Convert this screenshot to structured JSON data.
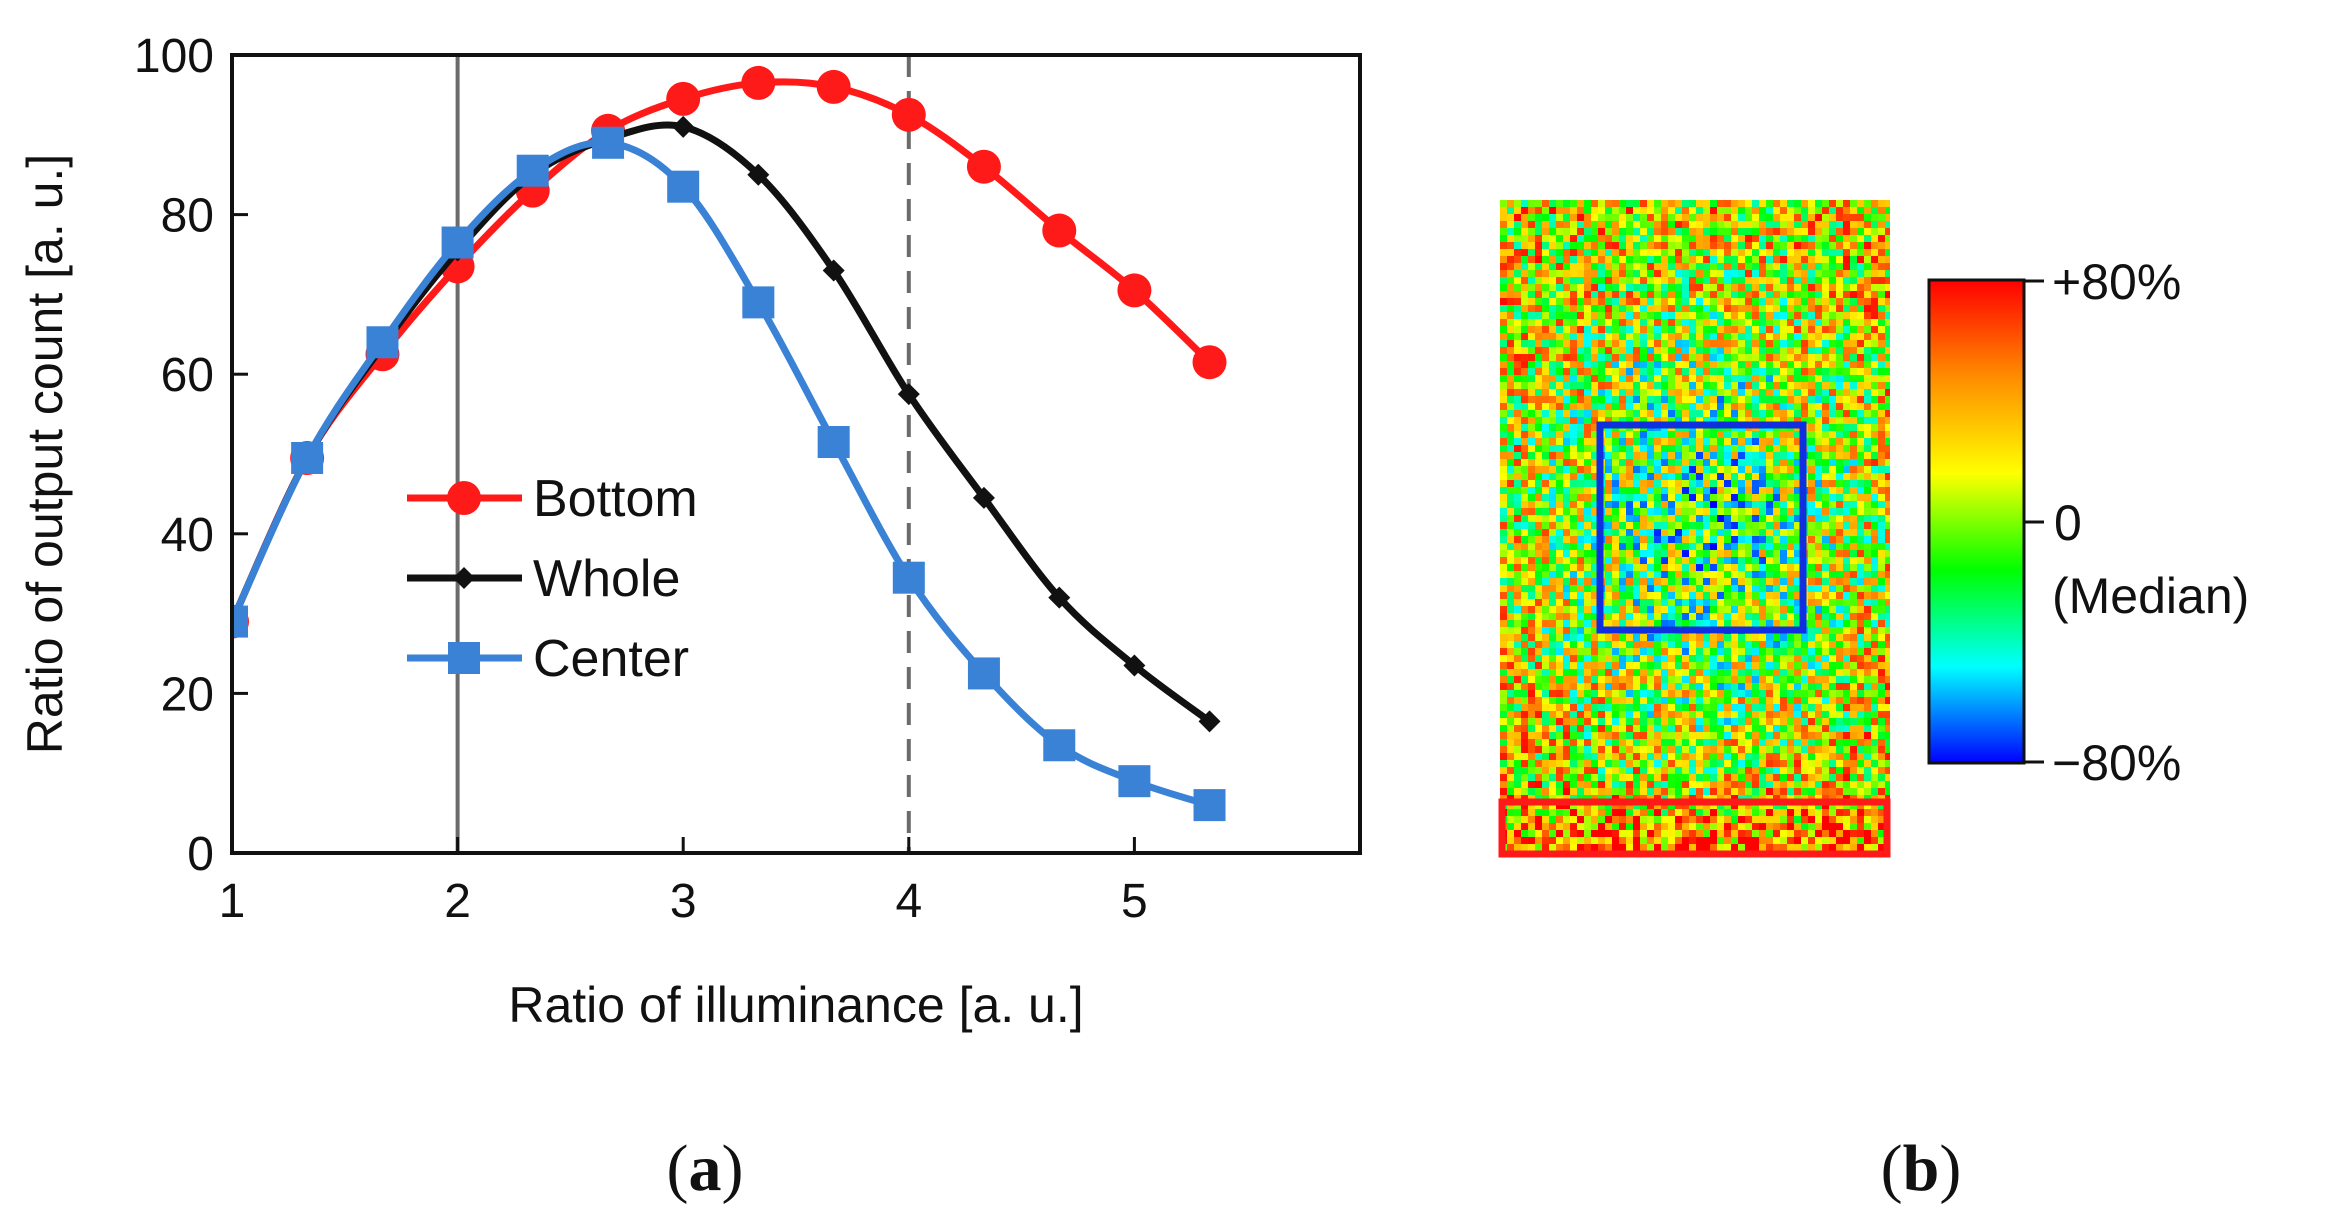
{
  "chart_data": [
    {
      "type": "line",
      "panel": "(a)",
      "xlabel": "Ratio of illuminance [a. u.]",
      "ylabel": "Ratio of output count [a. u.]",
      "xlim": [
        1,
        6
      ],
      "ylim": [
        0,
        100
      ],
      "xticks": [
        1,
        2,
        3,
        4,
        5
      ],
      "yticks": [
        0,
        20,
        40,
        60,
        80,
        100
      ],
      "vlines": [
        {
          "x": 2,
          "style": "solid",
          "color": "#6b6b6b"
        },
        {
          "x": 4,
          "style": "dashed",
          "color": "#6b6b6b"
        }
      ],
      "legend_position": "center-left",
      "series": [
        {
          "name": "Bottom",
          "color": "#ff1a1a",
          "marker": "circle",
          "x": [
            1,
            1.333,
            1.667,
            2,
            2.333,
            2.667,
            3,
            3.333,
            3.667,
            4,
            4.333,
            4.667,
            5,
            5.333
          ],
          "values": [
            29,
            49.5,
            62.5,
            73.5,
            83,
            90.5,
            94.5,
            96.5,
            96,
            92.5,
            86,
            78,
            70.5,
            61.5
          ]
        },
        {
          "name": "Whole",
          "color": "#111111",
          "marker": "diamond",
          "x": [
            1,
            1.333,
            1.667,
            2,
            2.333,
            2.667,
            3,
            3.333,
            3.667,
            4,
            4.333,
            4.667,
            5,
            5.333
          ],
          "values": [
            29,
            49.5,
            63.5,
            75.5,
            85,
            89.5,
            91,
            85,
            73,
            57.5,
            44.5,
            32,
            23.5,
            16.5
          ]
        },
        {
          "name": "Center",
          "color": "#3a82d6",
          "marker": "square",
          "x": [
            1,
            1.333,
            1.667,
            2,
            2.333,
            2.667,
            3,
            3.333,
            3.667,
            4,
            4.333,
            4.667,
            5,
            5.333
          ],
          "values": [
            29,
            49.5,
            64,
            76.5,
            85.5,
            89,
            83.5,
            69,
            51.5,
            34.5,
            22.5,
            13.5,
            9,
            6
          ]
        }
      ]
    },
    {
      "type": "heatmap",
      "panel": "(b)",
      "colorbar": {
        "max_label": "+80%",
        "mid_label": "0",
        "mid_sublabel": "(Median)",
        "min_label": "−80%",
        "colors": [
          "#ff0000",
          "#ff8c00",
          "#ffff00",
          "#00ff00",
          "#00ffff",
          "#0000ff"
        ]
      },
      "regions": [
        {
          "name": "Center",
          "color": "#1030e0"
        },
        {
          "name": "Bottom",
          "color": "#ff1a1a"
        }
      ]
    }
  ],
  "labels": {
    "panel_a": "(a)",
    "panel_b": "(b)"
  }
}
